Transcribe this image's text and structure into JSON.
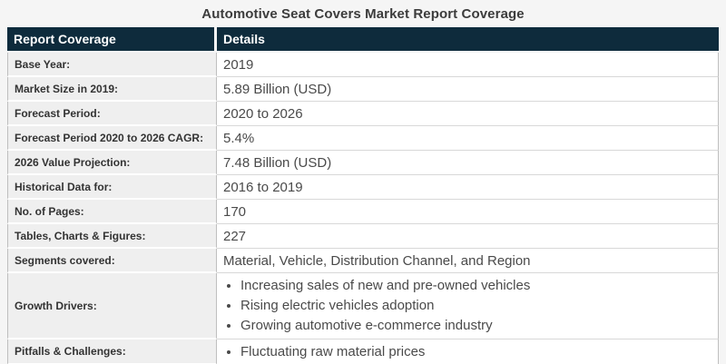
{
  "page": {
    "title": "Automotive Seat Covers Market Report Coverage"
  },
  "table": {
    "headers": [
      "Report Coverage",
      "Details"
    ],
    "rows": [
      {
        "label": "Base Year:",
        "value": "2019"
      },
      {
        "label": "Market Size in 2019:",
        "value": "5.89 Billion (USD)"
      },
      {
        "label": "Forecast Period:",
        "value": "2020 to 2026"
      },
      {
        "label": "Forecast Period 2020 to 2026 CAGR:",
        "value": "5.4%"
      },
      {
        "label": "2026 Value Projection:",
        "value": "7.48 Billion (USD)"
      },
      {
        "label": "Historical Data for:",
        "value": "2016 to 2019"
      },
      {
        "label": "No. of Pages:",
        "value": "170"
      },
      {
        "label": "Tables, Charts & Figures:",
        "value": "227"
      },
      {
        "label": "Segments covered:",
        "value": "Material, Vehicle, Distribution Channel, and Region"
      },
      {
        "label": "Growth Drivers:",
        "bullets": [
          "Increasing sales of new and pre-owned vehicles",
          "Rising electric vehicles adoption",
          "Growing automotive e-commerce industry"
        ]
      },
      {
        "label": "Pitfalls & Challenges:",
        "bullets": [
          "Fluctuating raw material prices"
        ]
      }
    ]
  },
  "colors": {
    "header_bg": "#0e2b3c",
    "header_text": "#ffffff",
    "label_cell_bg": "#efefef",
    "label_text": "#333333",
    "value_text": "#4a4a4a",
    "page_bg": "#f5f5f5",
    "row_border": "#bfbfbf",
    "bottom_bar": "#0e2b3c"
  }
}
